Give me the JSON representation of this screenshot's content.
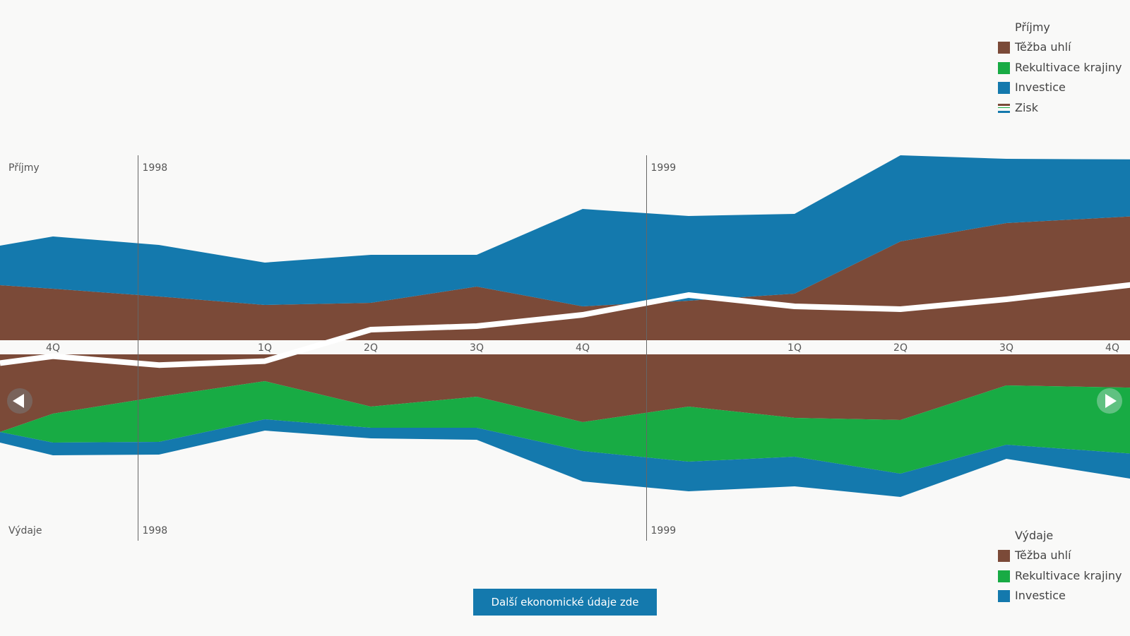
{
  "colors": {
    "tezba": "#7b4a38",
    "rekultivace": "#18ab44",
    "investice": "#1479ad",
    "zisk": "#ffffff",
    "background": "#f9f9f8",
    "gridline": "#666666",
    "axis_text": "#555555"
  },
  "legend_income": {
    "title": "Příjmy",
    "items": [
      {
        "label": "Těžba uhlí",
        "color": "#7b4a38",
        "kind": "area"
      },
      {
        "label": "Rekultivace krajiny",
        "color": "#18ab44",
        "kind": "area"
      },
      {
        "label": "Investice",
        "color": "#1479ad",
        "kind": "area"
      },
      {
        "label": "Zisk",
        "color": "#ffffff",
        "kind": "line"
      }
    ]
  },
  "legend_expense": {
    "title": "Výdaje",
    "items": [
      {
        "label": "Těžba uhlí",
        "color": "#7b4a38"
      },
      {
        "label": "Rekultivace krajiny",
        "color": "#18ab44"
      },
      {
        "label": "Investice",
        "color": "#1479ad"
      }
    ]
  },
  "navigation": {
    "prev_icon": "triangle-left-icon",
    "next_icon": "triangle-right-icon"
  },
  "more_button": {
    "label": "Další ekonomické údaje zde"
  },
  "chart_data": {
    "type": "area",
    "top_panel_label": "Příjmy",
    "bottom_panel_label": "Výdaje",
    "x_index": [
      -0.5,
      0,
      1,
      2,
      3,
      4,
      5,
      6,
      7,
      8,
      9,
      10.5
    ],
    "quarter_ticks": [
      {
        "label": "4Q",
        "x": 0
      },
      {
        "label": "1Q",
        "x": 2
      },
      {
        "label": "2Q",
        "x": 3
      },
      {
        "label": "3Q",
        "x": 4
      },
      {
        "label": "4Q",
        "x": 5
      },
      {
        "label": "1Q",
        "x": 7
      },
      {
        "label": "2Q",
        "x": 8
      },
      {
        "label": "3Q",
        "x": 9
      },
      {
        "label": "4Q",
        "x": 10
      }
    ],
    "year_markers": [
      {
        "label": "1998",
        "x": 0.8
      },
      {
        "label": "1999",
        "x": 5.6
      }
    ],
    "income": {
      "series": [
        {
          "name": "Těžba uhlí",
          "values": [
            78,
            73,
            62,
            50,
            53,
            76,
            48,
            56,
            66,
            140,
            166,
            178
          ]
        },
        {
          "name": "Investice",
          "values": [
            56,
            74,
            73,
            60,
            68,
            45,
            138,
            120,
            113,
            122,
            91,
            78
          ]
        }
      ],
      "ylim": [
        0,
        260
      ]
    },
    "expense": {
      "series": [
        {
          "name": "Těžba uhlí",
          "values": [
            110,
            84,
            60,
            38,
            74,
            60,
            96,
            74,
            90,
            93,
            44,
            48
          ]
        },
        {
          "name": "Rekultivace krajiny",
          "values": [
            0,
            41,
            64,
            54,
            30,
            44,
            41,
            78,
            55,
            76,
            84,
            96
          ]
        },
        {
          "name": "Investice",
          "values": [
            15,
            18,
            18,
            16,
            15,
            17,
            43,
            42,
            42,
            33,
            20,
            40
          ]
        }
      ],
      "ylim": [
        0,
        260
      ]
    },
    "zisk": {
      "name": "Zisk",
      "values": [
        -32,
        -18,
        -36,
        -28,
        15,
        20,
        36,
        64,
        48,
        44,
        58,
        84
      ]
    },
    "grid": false
  }
}
